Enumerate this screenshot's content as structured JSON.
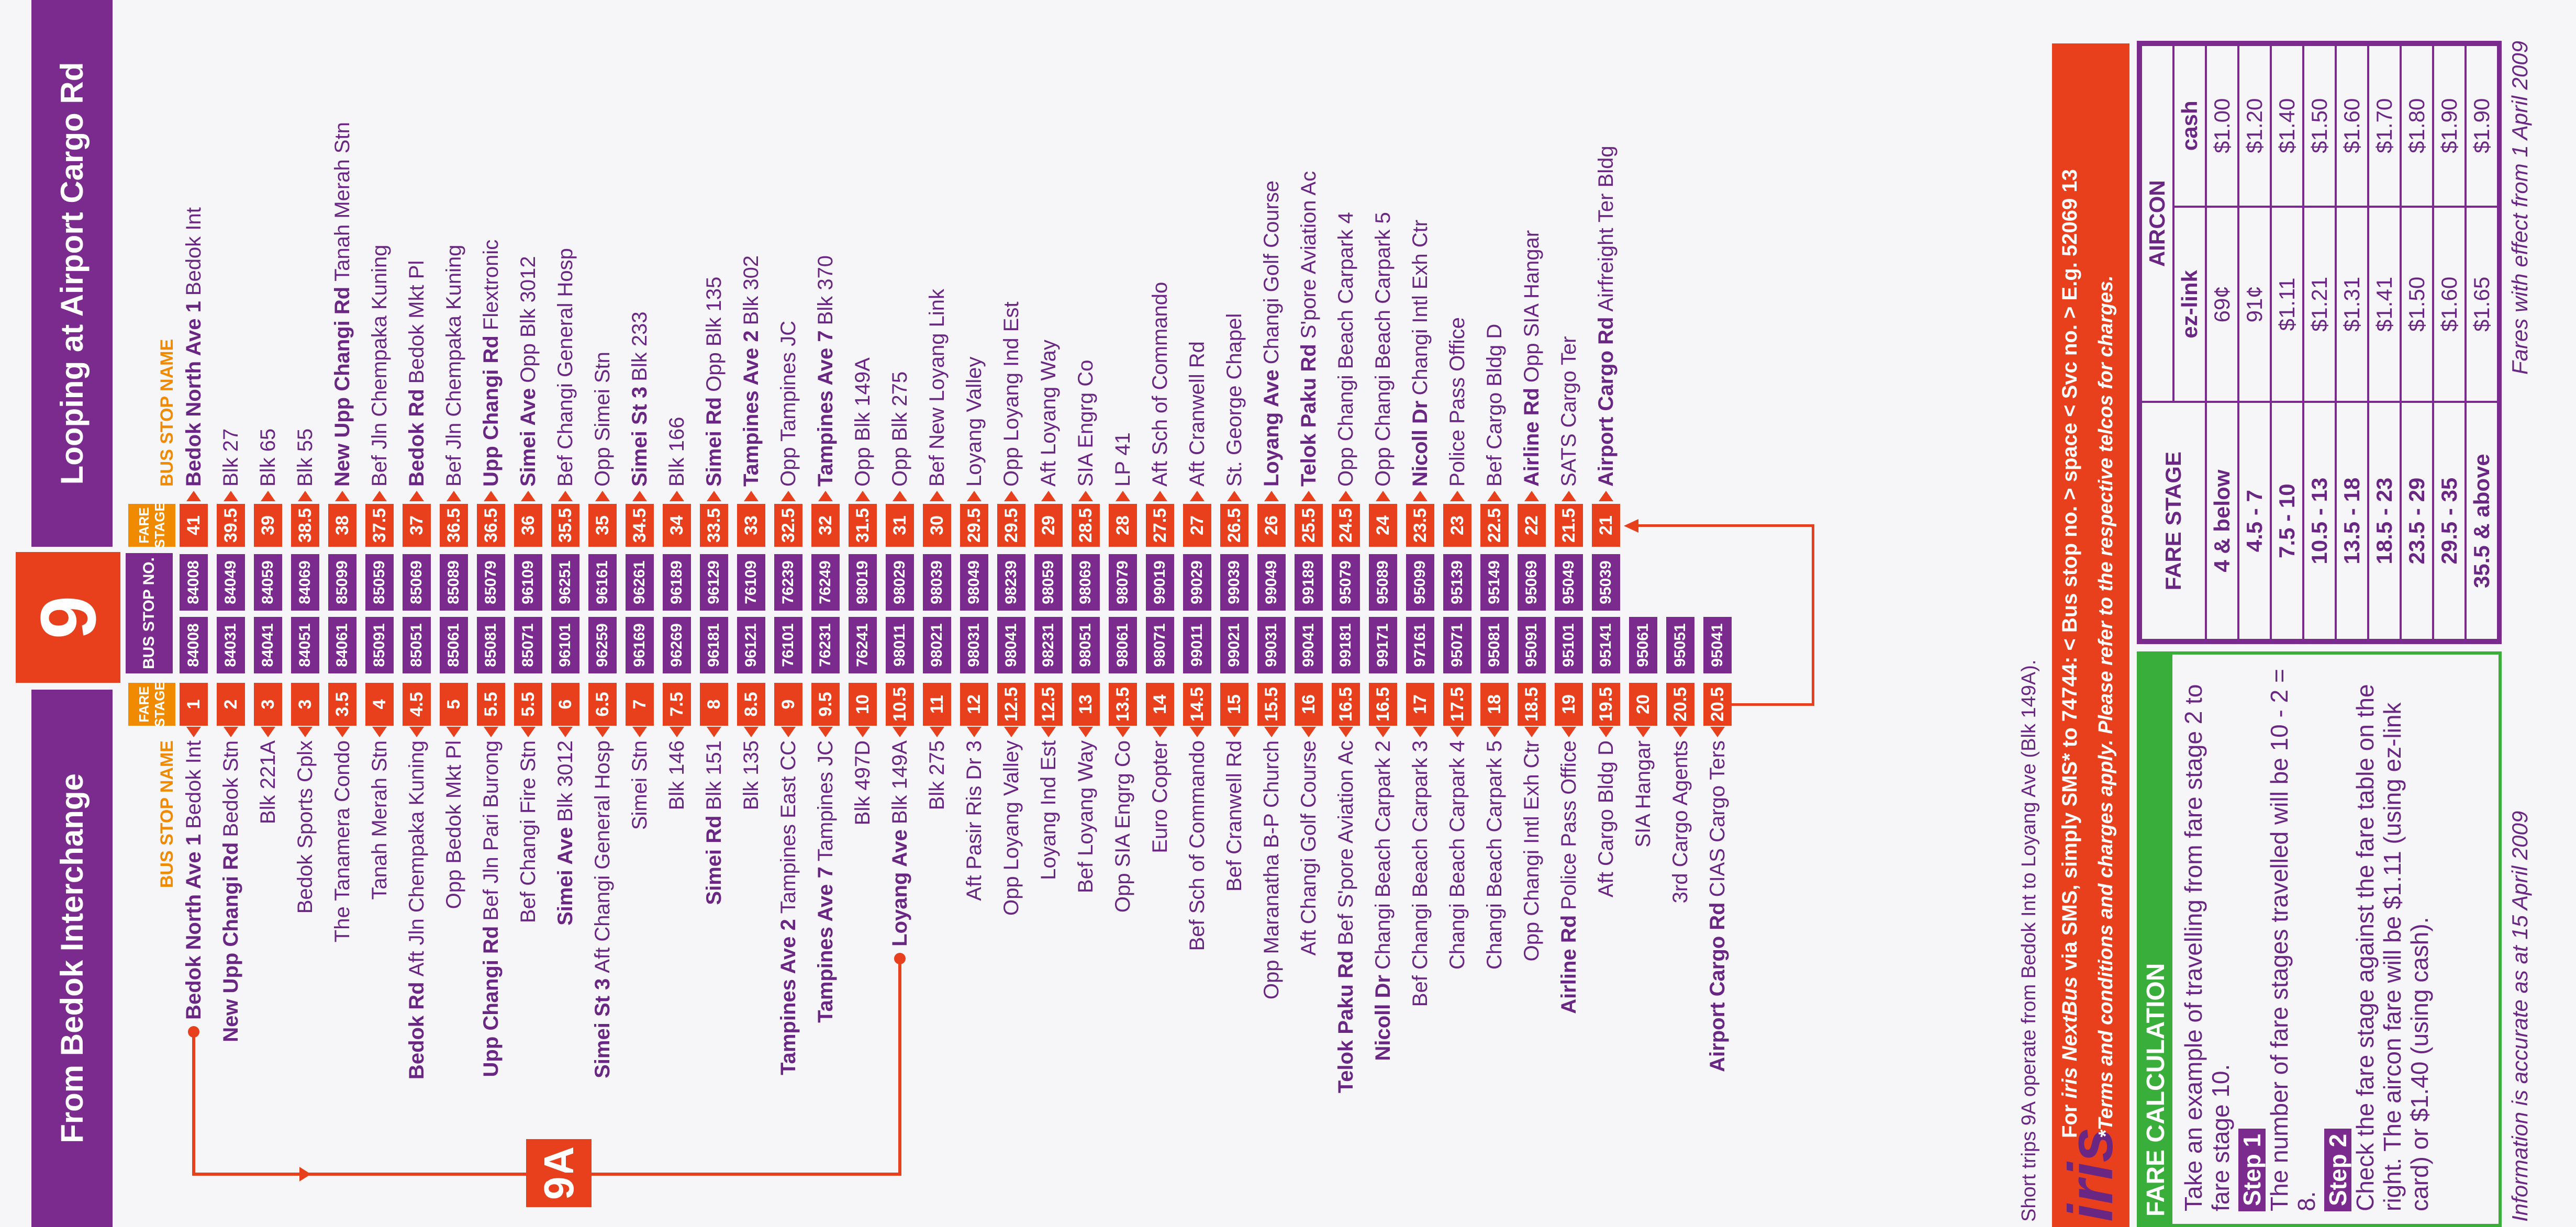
{
  "header": {
    "left_title": "From Bedok Interchange",
    "route": "9",
    "right_title": "Looping at Airport Cargo Rd"
  },
  "columns": {
    "left_name": "BUS STOP NAME",
    "left_stage": "FARE STAGE",
    "stop_no": "BUS STOP NO.",
    "right_stage": "FARE STAGE",
    "right_name": "BUS STOP NAME"
  },
  "outbound": [
    {
      "road": "Bedok North Ave 1",
      "name": "Bedok Int",
      "stage": 1,
      "stop_no": "84008"
    },
    {
      "road": "New Upp Changi Rd",
      "name": "Bedok Stn",
      "stage": 2,
      "stop_no": "84031"
    },
    {
      "name": "Blk 221A",
      "stage": 3,
      "stop_no": "84041"
    },
    {
      "name": "Bedok Sports Cplx",
      "stage": 3,
      "stop_no": "84051"
    },
    {
      "name": "The Tanamera Condo",
      "stage": 3.5,
      "stop_no": "84061"
    },
    {
      "name": "Tanah Merah Stn",
      "stage": 4,
      "stop_no": "85091"
    },
    {
      "road": "Bedok Rd",
      "name": "Aft Jln Chempaka Kuning",
      "stage": 4.5,
      "stop_no": "85051"
    },
    {
      "name": "Opp Bedok Mkt Pl",
      "stage": 5,
      "stop_no": "85061"
    },
    {
      "road": "Upp Changi Rd",
      "name": "Bef Jln Pari Burong",
      "stage": 5.5,
      "stop_no": "85081"
    },
    {
      "name": "Bef Changi Fire Stn",
      "stage": 5.5,
      "stop_no": "85071"
    },
    {
      "road": "Simei Ave",
      "name": "Blk 3012",
      "stage": 6,
      "stop_no": "96101"
    },
    {
      "road": "Simei St 3",
      "name": "Aft Changi General Hosp",
      "stage": 6.5,
      "stop_no": "96259"
    },
    {
      "name": "Simei Stn",
      "stage": 7,
      "stop_no": "96169"
    },
    {
      "name": "Blk 146",
      "stage": 7.5,
      "stop_no": "96269"
    },
    {
      "road": "Simei Rd",
      "name": "Blk 151",
      "stage": 8,
      "stop_no": "96181"
    },
    {
      "name": "Blk 135",
      "stage": 8.5,
      "stop_no": "96121"
    },
    {
      "road": "Tampines Ave 2",
      "name": "Tampines East CC",
      "stage": 9,
      "stop_no": "76101"
    },
    {
      "road": "Tampines Ave 7",
      "name": "Tampines JC",
      "stage": 9.5,
      "stop_no": "76231"
    },
    {
      "name": "Blk 497D",
      "stage": 10,
      "stop_no": "76241"
    },
    {
      "road": "Loyang Ave",
      "name": "Blk 149A",
      "stage": 10.5,
      "stop_no": "98011"
    },
    {
      "name": "Blk 275",
      "stage": 11,
      "stop_no": "98021"
    },
    {
      "name": "Aft Pasir Ris Dr 3",
      "stage": 12,
      "stop_no": "98031"
    },
    {
      "name": "Opp Loyang Valley",
      "stage": 12.5,
      "stop_no": "98041"
    },
    {
      "name": "Loyang Ind Est",
      "stage": 12.5,
      "stop_no": "98231"
    },
    {
      "name": "Bef Loyang Way",
      "stage": 13,
      "stop_no": "98051"
    },
    {
      "name": "Opp SIA Engrg Co",
      "stage": 13.5,
      "stop_no": "98061"
    },
    {
      "name": "Euro Copter",
      "stage": 14,
      "stop_no": "98071"
    },
    {
      "name": "Bef Sch of Commando",
      "stage": 14.5,
      "stop_no": "99011"
    },
    {
      "name": "Bef Cranwell Rd",
      "stage": 15,
      "stop_no": "99021"
    },
    {
      "name": "Opp Maranatha B-P Church",
      "stage": 15.5,
      "stop_no": "99031"
    },
    {
      "name": "Aft Changi Golf Course",
      "stage": 16,
      "stop_no": "99041"
    },
    {
      "road": "Telok Paku Rd",
      "name": "Bef S'pore Aviation Ac",
      "stage": 16.5,
      "stop_no": "99181"
    },
    {
      "road": "Nicoll Dr",
      "name": "Changi Beach Carpark 2",
      "stage": 16.5,
      "stop_no": "99171"
    },
    {
      "name": "Bef Changi Beach Carpark 3",
      "stage": 17,
      "stop_no": "97161"
    },
    {
      "name": "Changi Beach Carpark 4",
      "stage": 17.5,
      "stop_no": "95071"
    },
    {
      "name": "Changi Beach Carpark 5",
      "stage": 18,
      "stop_no": "95081"
    },
    {
      "name": "Opp Changi Intl Exh Ctr",
      "stage": 18.5,
      "stop_no": "95091"
    },
    {
      "road": "Airline Rd",
      "name": "Police Pass Office",
      "stage": 19,
      "stop_no": "95101"
    },
    {
      "name": "Aft Cargo Bldg D",
      "stage": 19.5,
      "stop_no": "95141"
    },
    {
      "name": "SIA Hangar",
      "stage": 20,
      "stop_no": "95061"
    },
    {
      "name": "3rd Cargo Agents",
      "stage": 20.5,
      "stop_no": "95051"
    },
    {
      "road": "Airport Cargo Rd",
      "name": "CIAS Cargo Ters",
      "stage": 20.5,
      "stop_no": "95041"
    }
  ],
  "inbound": [
    {
      "road": "Bedok North Ave 1",
      "name": "Bedok Int",
      "stage": 41,
      "stop_no": "84008"
    },
    {
      "name": "Blk 27",
      "stage": 39.5,
      "stop_no": "84049"
    },
    {
      "name": "Blk 65",
      "stage": 39,
      "stop_no": "84059"
    },
    {
      "name": "Blk 55",
      "stage": 38.5,
      "stop_no": "84069"
    },
    {
      "road": "New Upp Changi Rd",
      "name": "Tanah Merah Stn",
      "stage": 38,
      "stop_no": "85099"
    },
    {
      "name": "Bef Jln Chempaka Kuning",
      "stage": 37.5,
      "stop_no": "85059"
    },
    {
      "road": "Bedok Rd",
      "name": "Bedok Mkt Pl",
      "stage": 37,
      "stop_no": "85069"
    },
    {
      "name": "Bef Jln Chempaka Kuning",
      "stage": 36.5,
      "stop_no": "85089"
    },
    {
      "road": "Upp Changi Rd",
      "name": "Flextronic",
      "stage": 36.5,
      "stop_no": "85079"
    },
    {
      "road": "Simei Ave",
      "name": "Opp Blk 3012",
      "stage": 36,
      "stop_no": "96109"
    },
    {
      "name": "Bef Changi General Hosp",
      "stage": 35.5,
      "stop_no": "96251"
    },
    {
      "name": "Opp Simei Stn",
      "stage": 35,
      "stop_no": "96161"
    },
    {
      "road": "Simei St 3",
      "name": "Blk 233",
      "stage": 34.5,
      "stop_no": "96261"
    },
    {
      "name": "Blk 166",
      "stage": 34,
      "stop_no": "96189"
    },
    {
      "road": "Simei Rd",
      "name": "Opp Blk 135",
      "stage": 33.5,
      "stop_no": "96129"
    },
    {
      "road": "Tampines Ave 2",
      "name": "Blk 302",
      "stage": 33,
      "stop_no": "76109"
    },
    {
      "name": "Opp Tampines JC",
      "stage": 32.5,
      "stop_no": "76239"
    },
    {
      "road": "Tampines Ave 7",
      "name": "Blk 370",
      "stage": 32,
      "stop_no": "76249"
    },
    {
      "name": "Opp Blk 149A",
      "stage": 31.5,
      "stop_no": "98019"
    },
    {
      "name": "Opp Blk 275",
      "stage": 31,
      "stop_no": "98029"
    },
    {
      "name": "Bef New Loyang Link",
      "stage": 30,
      "stop_no": "98039"
    },
    {
      "name": "Loyang Valley",
      "stage": 29.5,
      "stop_no": "98049"
    },
    {
      "name": "Opp Loyang Ind Est",
      "stage": 29.5,
      "stop_no": "98239"
    },
    {
      "name": "Aft Loyang Way",
      "stage": 29,
      "stop_no": "98059"
    },
    {
      "name": "SIA Engrg Co",
      "stage": 28.5,
      "stop_no": "98069"
    },
    {
      "name": "LP 41",
      "stage": 28,
      "stop_no": "98079"
    },
    {
      "name": "Aft Sch of Commando",
      "stage": 27.5,
      "stop_no": "99019"
    },
    {
      "name": "Aft Cranwell Rd",
      "stage": 27,
      "stop_no": "99029"
    },
    {
      "name": "St. George Chapel",
      "stage": 26.5,
      "stop_no": "99039"
    },
    {
      "road": "Loyang Ave",
      "name": "Changi Golf Course",
      "stage": 26,
      "stop_no": "99049"
    },
    {
      "road": "Telok Paku Rd",
      "name": "S'pore Aviation Ac",
      "stage": 25.5,
      "stop_no": "99189"
    },
    {
      "name": "Opp Changi Beach Carpark 4",
      "stage": 24.5,
      "stop_no": "95079"
    },
    {
      "name": "Opp Changi Beach Carpark 5",
      "stage": 24,
      "stop_no": "95089"
    },
    {
      "road": "Nicoll Dr",
      "name": "Changi Intl Exh Ctr",
      "stage": 23.5,
      "stop_no": "95099"
    },
    {
      "name": "Police Pass Office",
      "stage": 23,
      "stop_no": "95139"
    },
    {
      "name": "Bef Cargo Bldg D",
      "stage": 22.5,
      "stop_no": "95149"
    },
    {
      "road": "Airline Rd",
      "name": "Opp SIA Hangar",
      "stage": 22,
      "stop_no": "95069"
    },
    {
      "name": "SATS Cargo Ter",
      "stage": 21.5,
      "stop_no": "95049"
    },
    {
      "road": "Airport Cargo Rd",
      "name": "Airfreight Ter Bldg",
      "stage": 21,
      "stop_no": "95039"
    }
  ],
  "short_trip": {
    "label": "9A",
    "note": "Short trips 9A operate from Bedok Int to Loyang Ave (Blk 149A)."
  },
  "iris": {
    "logo": "iris",
    "lead": "For ",
    "service": "iris NextBus",
    "line1": " via SMS, simply SMS* to 74744: < Bus stop no. > space < Svc no. > E.g. 52069 13",
    "line2": "*Terms and conditions and charges apply. Please refer to the respective telcos for charges."
  },
  "fare_calc": {
    "title": "FARE CALCULATION",
    "intro": "Take an example of travelling from fare stage 2 to fare stage 10.",
    "step1_label": "Step 1",
    "step1_text": "The number of fare stages travelled will be 10 - 2 = 8.",
    "step2_label": "Step 2",
    "step2_text": "Check the fare stage against the fare table on the right. The aircon fare will be $1.11 (using ez-link card) or $1.40 (using cash)."
  },
  "fare_table": {
    "stage_header": "FARE STAGE",
    "aircon_header": "AIRCON",
    "ezlink_header": "ez-link",
    "cash_header": "cash",
    "rows": [
      [
        "4 & below",
        "69¢",
        "$1.00"
      ],
      [
        "4.5 - 7",
        "91¢",
        "$1.20"
      ],
      [
        "7.5 - 10",
        "$1.11",
        "$1.40"
      ],
      [
        "10.5 - 13",
        "$1.21",
        "$1.50"
      ],
      [
        "13.5 - 18",
        "$1.31",
        "$1.60"
      ],
      [
        "18.5 - 23",
        "$1.41",
        "$1.70"
      ],
      [
        "23.5 - 29",
        "$1.50",
        "$1.80"
      ],
      [
        "29.5 - 35",
        "$1.60",
        "$1.90"
      ],
      [
        "35.5 & above",
        "$1.65",
        "$1.90"
      ]
    ]
  },
  "footer": {
    "accuracy": "Information is accurate as at 15 April 2009",
    "effective": "Fares with effect from 1 April 2009"
  }
}
